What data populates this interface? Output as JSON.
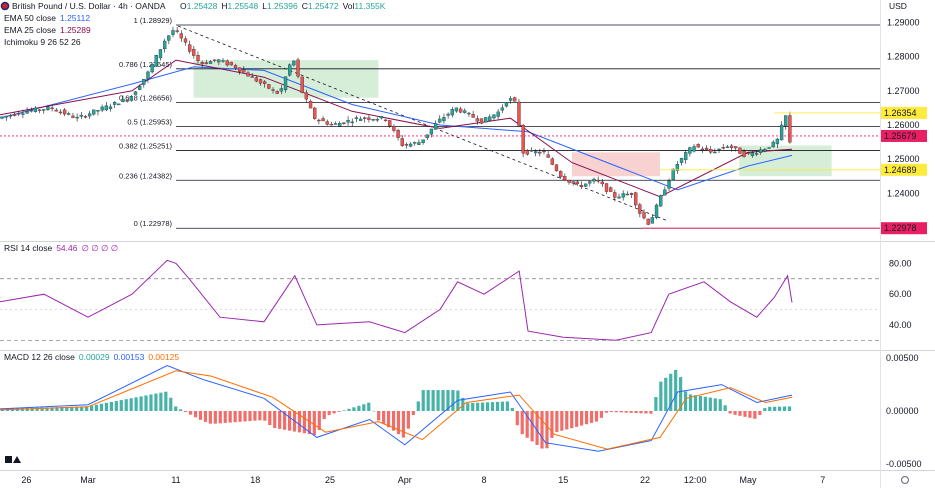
{
  "header": {
    "title": "British Pound / U.S. Dollar · 4h · OANDA",
    "ohlc": [
      {
        "key": "O",
        "value": "1.25428"
      },
      {
        "key": "H",
        "value": "1.25548"
      },
      {
        "key": "L",
        "value": "1.25396"
      },
      {
        "key": "C",
        "value": "1.25472"
      },
      {
        "key": "Vol",
        "value": "11.355K"
      }
    ],
    "currency": "USD"
  },
  "indicators": {
    "ema50": {
      "label": "EMA 50 close",
      "value": "1.25112",
      "color": "#2962ff"
    },
    "ema25": {
      "label": "EMA 25 close",
      "value": "1.25289",
      "color": "#880e4f"
    },
    "ichimoku": {
      "label": "Ichimoku 9 26 52 26"
    },
    "rsi": {
      "label": "RSI 14 close",
      "value": "54.46",
      "extras": "∅ ∅ ∅ ∅",
      "color": "#9c27b0"
    },
    "macd": {
      "label": "MACD 12 26 close",
      "values": [
        "0.00029",
        "0.00153",
        "0.00125"
      ],
      "colors": [
        "#26a69a",
        "#2962ff",
        "#ff6d00"
      ]
    }
  },
  "price_badges": [
    {
      "text": "1.26354",
      "price": 1.26354,
      "bg": "#ffeb3b",
      "fg": "#131722"
    },
    {
      "text": "1.25679",
      "price": 1.25679,
      "bg": "#e91e63",
      "fg": "#ffffff"
    },
    {
      "text": "1.24689",
      "price": 1.24689,
      "bg": "#ffeb3b",
      "fg": "#131722"
    },
    {
      "text": "1.22978",
      "price": 1.22978,
      "bg": "#e91e63",
      "fg": "#ffffff"
    }
  ],
  "x_axis": {
    "labels": [
      {
        "text": "26",
        "pos": 0.03
      },
      {
        "text": "Mar",
        "pos": 0.1
      },
      {
        "text": "11",
        "pos": 0.2
      },
      {
        "text": "18",
        "pos": 0.29
      },
      {
        "text": "25",
        "pos": 0.375
      },
      {
        "text": "Apr",
        "pos": 0.46
      },
      {
        "text": "8",
        "pos": 0.55
      },
      {
        "text": "15",
        "pos": 0.64
      },
      {
        "text": "22",
        "pos": 0.733
      },
      {
        "text": "12:00",
        "pos": 0.79
      },
      {
        "text": "May",
        "pos": 0.85
      },
      {
        "text": "7",
        "pos": 0.935
      }
    ]
  },
  "chart_data": [
    {
      "type": "candlestick",
      "title": "British Pound / U.S. Dollar",
      "timeframe": "4h",
      "source": "OANDA",
      "y_ticks": [
        "1.29000",
        "1.28000",
        "1.27000",
        "1.26000",
        "1.25000",
        "1.24000"
      ],
      "ylim": [
        1.2275,
        1.2925
      ],
      "fibonacci": [
        {
          "level": "1",
          "price": 1.28929
        },
        {
          "level": "0.786",
          "price": 1.27645
        },
        {
          "level": "0.618",
          "price": 1.26656
        },
        {
          "level": "0.5",
          "price": 1.25953
        },
        {
          "level": "0.382",
          "price": 1.25251
        },
        {
          "level": "0.236",
          "price": 1.24382
        },
        {
          "level": "0",
          "price": 1.22978
        }
      ],
      "price_path": [
        [
          0,
          1.262
        ],
        [
          0.03,
          1.264
        ],
        [
          0.06,
          1.265
        ],
        [
          0.09,
          1.262
        ],
        [
          0.12,
          1.265
        ],
        [
          0.15,
          1.268
        ],
        [
          0.17,
          1.275
        ],
        [
          0.19,
          1.285
        ],
        [
          0.2,
          1.288
        ],
        [
          0.215,
          1.283
        ],
        [
          0.23,
          1.278
        ],
        [
          0.25,
          1.279
        ],
        [
          0.27,
          1.277
        ],
        [
          0.3,
          1.272
        ],
        [
          0.32,
          1.269
        ],
        [
          0.335,
          1.28
        ],
        [
          0.345,
          1.27
        ],
        [
          0.36,
          1.262
        ],
        [
          0.38,
          1.26
        ],
        [
          0.41,
          1.262
        ],
        [
          0.44,
          1.262
        ],
        [
          0.46,
          1.254
        ],
        [
          0.48,
          1.255
        ],
        [
          0.5,
          1.261
        ],
        [
          0.52,
          1.265
        ],
        [
          0.55,
          1.261
        ],
        [
          0.57,
          1.264
        ],
        [
          0.58,
          1.268
        ],
        [
          0.59,
          1.266
        ],
        [
          0.595,
          1.252
        ],
        [
          0.62,
          1.252
        ],
        [
          0.64,
          1.245
        ],
        [
          0.66,
          1.242
        ],
        [
          0.68,
          1.244
        ],
        [
          0.7,
          1.239
        ],
        [
          0.72,
          1.24
        ],
        [
          0.73,
          1.234
        ],
        [
          0.74,
          1.231
        ],
        [
          0.755,
          1.24
        ],
        [
          0.77,
          1.248
        ],
        [
          0.79,
          1.254
        ],
        [
          0.81,
          1.252
        ],
        [
          0.83,
          1.254
        ],
        [
          0.85,
          1.251
        ],
        [
          0.87,
          1.253
        ],
        [
          0.885,
          1.255
        ],
        [
          0.895,
          1.263
        ],
        [
          0.9,
          1.2547
        ]
      ],
      "ema50_path": [
        [
          0,
          1.262
        ],
        [
          0.15,
          1.272
        ],
        [
          0.22,
          1.277
        ],
        [
          0.3,
          1.276
        ],
        [
          0.4,
          1.266
        ],
        [
          0.5,
          1.26
        ],
        [
          0.6,
          1.258
        ],
        [
          0.7,
          1.248
        ],
        [
          0.77,
          1.241
        ],
        [
          0.85,
          1.248
        ],
        [
          0.9,
          1.2511
        ]
      ],
      "ema25_path": [
        [
          0,
          1.263
        ],
        [
          0.15,
          1.27
        ],
        [
          0.2,
          1.279
        ],
        [
          0.3,
          1.274
        ],
        [
          0.4,
          1.264
        ],
        [
          0.5,
          1.259
        ],
        [
          0.58,
          1.262
        ],
        [
          0.65,
          1.249
        ],
        [
          0.75,
          1.239
        ],
        [
          0.85,
          1.252
        ],
        [
          0.9,
          1.2529
        ]
      ],
      "ichimoku_cloud": [
        {
          "x_start": 0.22,
          "x_end": 0.43,
          "top": 1.279,
          "bottom": 1.268,
          "color": "#a5d6a7"
        },
        {
          "x_start": 0.65,
          "x_end": 0.75,
          "top": 1.252,
          "bottom": 1.245,
          "color": "#ef9a9a"
        },
        {
          "x_start": 0.84,
          "x_end": 0.945,
          "top": 1.254,
          "bottom": 1.245,
          "color": "#a5d6a7"
        }
      ]
    },
    {
      "type": "line",
      "title": "RSI 14 close",
      "y_ticks": [
        "80.00",
        "60.00",
        "40.00"
      ],
      "ylim": [
        25,
        90
      ],
      "bands": [
        70,
        30
      ],
      "path": [
        [
          0,
          55
        ],
        [
          0.05,
          60
        ],
        [
          0.1,
          45
        ],
        [
          0.15,
          60
        ],
        [
          0.19,
          82
        ],
        [
          0.2,
          80
        ],
        [
          0.215,
          70
        ],
        [
          0.25,
          45
        ],
        [
          0.3,
          42
        ],
        [
          0.335,
          72
        ],
        [
          0.36,
          40
        ],
        [
          0.42,
          42
        ],
        [
          0.46,
          35
        ],
        [
          0.5,
          50
        ],
        [
          0.52,
          68
        ],
        [
          0.55,
          60
        ],
        [
          0.59,
          75
        ],
        [
          0.6,
          36
        ],
        [
          0.64,
          32
        ],
        [
          0.7,
          30
        ],
        [
          0.74,
          35
        ],
        [
          0.76,
          60
        ],
        [
          0.8,
          68
        ],
        [
          0.83,
          55
        ],
        [
          0.86,
          45
        ],
        [
          0.88,
          58
        ],
        [
          0.895,
          72
        ],
        [
          0.9,
          54.5
        ]
      ]
    },
    {
      "type": "bar",
      "title": "MACD 12 26 close",
      "y_ticks": [
        "0.00500",
        "0.00000",
        "-0.00500"
      ],
      "ylim": [
        -0.0052,
        0.0052
      ],
      "macd_path": [
        [
          0,
          0.0002
        ],
        [
          0.1,
          0.0006
        ],
        [
          0.19,
          0.0043
        ],
        [
          0.23,
          0.003
        ],
        [
          0.3,
          0.0012
        ],
        [
          0.36,
          -0.0025
        ],
        [
          0.42,
          -0.0008
        ],
        [
          0.46,
          -0.0032
        ],
        [
          0.52,
          0.001
        ],
        [
          0.58,
          0.0018
        ],
        [
          0.62,
          -0.003
        ],
        [
          0.68,
          -0.0038
        ],
        [
          0.74,
          -0.0028
        ],
        [
          0.77,
          0.0018
        ],
        [
          0.82,
          0.0025
        ],
        [
          0.86,
          0.0008
        ],
        [
          0.9,
          0.0015
        ]
      ],
      "signal_path": [
        [
          0,
          0.0001
        ],
        [
          0.1,
          0.0004
        ],
        [
          0.2,
          0.0038
        ],
        [
          0.24,
          0.0033
        ],
        [
          0.31,
          0.0013
        ],
        [
          0.37,
          -0.002
        ],
        [
          0.43,
          -0.001
        ],
        [
          0.48,
          -0.0027
        ],
        [
          0.53,
          0.0008
        ],
        [
          0.59,
          0.0015
        ],
        [
          0.63,
          -0.0022
        ],
        [
          0.69,
          -0.0036
        ],
        [
          0.75,
          -0.0025
        ],
        [
          0.78,
          0.0012
        ],
        [
          0.83,
          0.0022
        ],
        [
          0.87,
          0.0008
        ],
        [
          0.9,
          0.0013
        ]
      ]
    }
  ]
}
